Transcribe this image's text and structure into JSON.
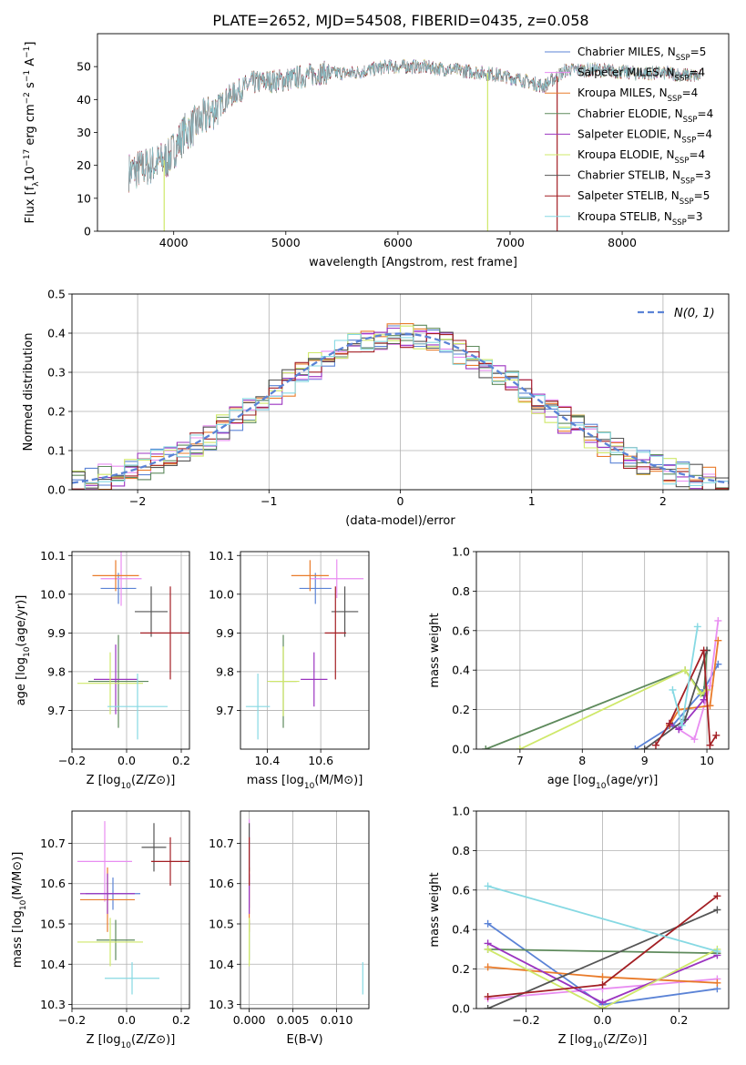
{
  "figure": {
    "title": "PLATE=2652, MJD=54508, FIBERID=0435, z=0.058"
  },
  "palette": [
    "#5b83d6",
    "#e88df1",
    "#e97b2a",
    "#5e8a5c",
    "#9b34c0",
    "#cfe86a",
    "#555555",
    "#a31f24",
    "#86d9e3"
  ],
  "legend_entries": [
    {
      "label": "Chabrier MILES, N",
      "nssp": "5",
      "color": "#5b83d6"
    },
    {
      "label": "Salpeter MILES, N",
      "nssp": "4",
      "color": "#e88df1"
    },
    {
      "label": "Kroupa MILES, N",
      "nssp": "4",
      "color": "#e97b2a"
    },
    {
      "label": "Chabrier ELODIE, N",
      "nssp": "4",
      "color": "#5e8a5c"
    },
    {
      "label": "Salpeter ELODIE, N",
      "nssp": "4",
      "color": "#9b34c0"
    },
    {
      "label": "Kroupa ELODIE, N",
      "nssp": "4",
      "color": "#cfe86a"
    },
    {
      "label": "Chabrier STELIB, N",
      "nssp": "3",
      "color": "#555555"
    },
    {
      "label": "Salpeter STELIB, N",
      "nssp": "5",
      "color": "#a31f24"
    },
    {
      "label": "Kroupa STELIB, N",
      "nssp": "3",
      "color": "#86d9e3"
    }
  ],
  "legend_sub": "SSP",
  "chart_data": [
    {
      "id": "spectrum",
      "type": "line",
      "xlabel": "wavelength [Angstrom, rest frame]",
      "ylabel": "Flux [f",
      "ylabel_tail": "10",
      "xlim": [
        3320,
        8950
      ],
      "ylim": [
        0,
        60
      ],
      "xticks": [
        "4000",
        "5000",
        "6000",
        "7000",
        "8000"
      ],
      "yticks": [
        "0",
        "10",
        "20",
        "30",
        "40",
        "50"
      ],
      "continuum_x": [
        3600,
        3800,
        3950,
        4100,
        4300,
        4500,
        4700,
        5000,
        5300,
        5600,
        5900,
        6200,
        6500,
        6800,
        7100,
        7300,
        7500,
        7800,
        8100,
        8400,
        8700
      ],
      "continuum_y": [
        18,
        20,
        22,
        30,
        35,
        41,
        45,
        46,
        48,
        48,
        50,
        50,
        49,
        48,
        46,
        44,
        49,
        49,
        48,
        48,
        47
      ]
    },
    {
      "id": "residuals",
      "type": "line",
      "xlabel": "(data-model)/error",
      "ylabel": "Normed distribution",
      "xlim": [
        -2.5,
        2.5
      ],
      "ylim": [
        0,
        0.5
      ],
      "xticks": [
        "−2",
        "−1",
        "0",
        "1",
        "2"
      ],
      "yticks": [
        "0.0",
        "0.1",
        "0.2",
        "0.3",
        "0.4",
        "0.5"
      ],
      "legend": "N(0, 1)",
      "series": [
        {
          "name": "N(0, 1)",
          "mu": 0,
          "sigma": 1
        }
      ]
    },
    {
      "id": "Z_age",
      "type": "scatter",
      "xlabel": "Z [log",
      "ylabel": "age  [log",
      "xlim": [
        -0.2,
        0.23
      ],
      "ylim": [
        9.6,
        10.11
      ],
      "xticks": [
        "−0.2",
        "0.0",
        "0.2"
      ],
      "yticks": [
        "9.7",
        "9.8",
        "9.9",
        "10.0",
        "10.1"
      ],
      "points": [
        {
          "x": -0.03,
          "y": 10.015,
          "xerr": 0.065,
          "yerr": 0.04
        },
        {
          "x": -0.02,
          "y": 10.04,
          "xerr": 0.075,
          "yerr": 0.07
        },
        {
          "x": -0.04,
          "y": 10.048,
          "xerr": 0.085,
          "yerr": 0.04
        },
        {
          "x": -0.03,
          "y": 9.775,
          "xerr": 0.11,
          "yerr": 0.12
        },
        {
          "x": -0.04,
          "y": 9.78,
          "xerr": 0.08,
          "yerr": 0.09
        },
        {
          "x": -0.06,
          "y": 9.77,
          "xerr": 0.12,
          "yerr": 0.08
        },
        {
          "x": 0.09,
          "y": 9.955,
          "xerr": 0.06,
          "yerr": 0.065
        },
        {
          "x": 0.16,
          "y": 9.9,
          "xerr": 0.11,
          "yerr": 0.12
        },
        {
          "x": 0.04,
          "y": 9.71,
          "xerr": 0.11,
          "yerr": 0.085
        }
      ]
    },
    {
      "id": "mass_age",
      "type": "scatter",
      "xlabel": "mass [log",
      "ylabel": "",
      "xlim": [
        10.3,
        10.78
      ],
      "ylim": [
        9.6,
        10.11
      ],
      "xticks": [
        "10.4",
        "10.6"
      ],
      "yticks": [
        "9.7",
        "9.8",
        "9.9",
        "10.0",
        "10.1"
      ],
      "points": [
        {
          "x": 10.58,
          "y": 10.015,
          "xerr": 0.06,
          "yerr": 0.04
        },
        {
          "x": 10.66,
          "y": 10.04,
          "xerr": 0.1,
          "yerr": 0.05
        },
        {
          "x": 10.56,
          "y": 10.048,
          "xerr": 0.07,
          "yerr": 0.04
        },
        {
          "x": 10.46,
          "y": 9.775,
          "xerr": 0.05,
          "yerr": 0.12
        },
        {
          "x": 10.575,
          "y": 9.78,
          "xerr": 0.05,
          "yerr": 0.07
        },
        {
          "x": 10.46,
          "y": 9.775,
          "xerr": 0.06,
          "yerr": 0.09
        },
        {
          "x": 10.69,
          "y": 9.955,
          "xerr": 0.05,
          "yerr": 0.065
        },
        {
          "x": 10.655,
          "y": 9.9,
          "xerr": 0.04,
          "yerr": 0.12
        },
        {
          "x": 10.365,
          "y": 9.71,
          "xerr": 0.045,
          "yerr": 0.085
        }
      ]
    },
    {
      "id": "age_weight",
      "type": "line",
      "xlabel": "age  [log",
      "ylabel": "mass weight",
      "xlim": [
        6.3,
        10.35
      ],
      "ylim": [
        0,
        1
      ],
      "xticks": [
        "7",
        "8",
        "9",
        "10"
      ],
      "yticks": [
        "0.0",
        "0.2",
        "0.4",
        "0.6",
        "0.8",
        "1.0"
      ],
      "series": [
        {
          "x": [
            8.85,
            9.45,
            9.95,
            10.18
          ],
          "y": [
            0.0,
            0.12,
            0.3,
            0.43
          ]
        },
        {
          "x": [
            9.55,
            9.8,
            10.05,
            10.18
          ],
          "y": [
            0.1,
            0.05,
            0.32,
            0.65
          ]
        },
        {
          "x": [
            9.4,
            9.55,
            10.05,
            10.18
          ],
          "y": [
            0.12,
            0.2,
            0.22,
            0.55
          ]
        },
        {
          "x": [
            6.45,
            9.65,
            9.95,
            10.0
          ],
          "y": [
            0.0,
            0.4,
            0.27,
            0.5
          ]
        },
        {
          "x": [
            9.4,
            9.55,
            9.95,
            10.0
          ],
          "y": [
            0.13,
            0.1,
            0.25,
            0.3
          ]
        },
        {
          "x": [
            7.0,
            9.65,
            9.9,
            10.0
          ],
          "y": [
            0.0,
            0.4,
            0.28,
            0.3
          ]
        },
        {
          "x": [
            9.0,
            9.65,
            10.0
          ],
          "y": [
            0.0,
            0.15,
            0.5
          ]
        },
        {
          "x": [
            9.18,
            9.4,
            9.95,
            10.05,
            10.15
          ],
          "y": [
            0.02,
            0.13,
            0.5,
            0.02,
            0.07
          ]
        },
        {
          "x": [
            9.45,
            9.6,
            9.85
          ],
          "y": [
            0.3,
            0.12,
            0.62
          ]
        }
      ]
    },
    {
      "id": "Z_mass",
      "type": "scatter",
      "xlabel": "Z [log",
      "ylabel": "mass [log",
      "xlim": [
        -0.2,
        0.23
      ],
      "ylim": [
        10.29,
        10.78
      ],
      "xticks": [
        "−0.2",
        "0.0",
        "0.2"
      ],
      "yticks": [
        "10.3",
        "10.4",
        "10.5",
        "10.6",
        "10.7"
      ],
      "points": [
        {
          "x": -0.05,
          "y": 10.575,
          "xerr": 0.1,
          "yerr": 0.04
        },
        {
          "x": -0.08,
          "y": 10.655,
          "xerr": 0.1,
          "yerr": 0.1
        },
        {
          "x": -0.07,
          "y": 10.56,
          "xerr": 0.1,
          "yerr": 0.08
        },
        {
          "x": -0.04,
          "y": 10.46,
          "xerr": 0.07,
          "yerr": 0.05
        },
        {
          "x": -0.07,
          "y": 10.575,
          "xerr": 0.1,
          "yerr": 0.05
        },
        {
          "x": -0.06,
          "y": 10.455,
          "xerr": 0.12,
          "yerr": 0.06
        },
        {
          "x": 0.1,
          "y": 10.69,
          "xerr": 0.045,
          "yerr": 0.06
        },
        {
          "x": 0.16,
          "y": 10.655,
          "xerr": 0.07,
          "yerr": 0.06
        },
        {
          "x": 0.02,
          "y": 10.365,
          "xerr": 0.1,
          "yerr": 0.04
        }
      ]
    },
    {
      "id": "EBV_mass",
      "type": "scatter",
      "xlabel": "E(B-V)",
      "ylabel": "",
      "xlim": [
        -0.001,
        0.0137
      ],
      "ylim": [
        10.29,
        10.78
      ],
      "xticks": [
        "0.000",
        "0.005",
        "0.010"
      ],
      "yticks": [
        "10.3",
        "10.4",
        "10.5",
        "10.6",
        "10.7"
      ],
      "points": [
        {
          "x": 0.0,
          "y": 10.58,
          "xerr": 0,
          "yerr": 0.04
        },
        {
          "x": 0.0,
          "y": 10.66,
          "xerr": 0,
          "yerr": 0.1
        },
        {
          "x": 0.0,
          "y": 10.56,
          "xerr": 0,
          "yerr": 0.08
        },
        {
          "x": 0.0,
          "y": 10.46,
          "xerr": 0,
          "yerr": 0.05
        },
        {
          "x": 0.0,
          "y": 10.575,
          "xerr": 0,
          "yerr": 0.05
        },
        {
          "x": 0.0,
          "y": 10.455,
          "xerr": 0,
          "yerr": 0.06
        },
        {
          "x": 0.0,
          "y": 10.69,
          "xerr": 0,
          "yerr": 0.06
        },
        {
          "x": 0.0,
          "y": 10.655,
          "xerr": 0,
          "yerr": 0.06
        },
        {
          "x": 0.013,
          "y": 10.365,
          "xerr": 0,
          "yerr": 0.04
        }
      ]
    },
    {
      "id": "Z_weight",
      "type": "line",
      "xlabel": "Z [log",
      "ylabel": "mass weight",
      "xlim": [
        -0.33,
        0.33
      ],
      "ylim": [
        0,
        1
      ],
      "xticks": [
        "−0.2",
        "0.0",
        "0.2"
      ],
      "yticks": [
        "0.0",
        "0.2",
        "0.4",
        "0.6",
        "0.8",
        "1.0"
      ],
      "series": [
        {
          "x": [
            -0.3,
            0.0,
            0.3
          ],
          "y": [
            0.43,
            0.02,
            0.1
          ]
        },
        {
          "x": [
            -0.3,
            0.0,
            0.3
          ],
          "y": [
            0.05,
            0.1,
            0.15
          ]
        },
        {
          "x": [
            -0.3,
            0.0,
            0.3
          ],
          "y": [
            0.21,
            0.16,
            0.13
          ]
        },
        {
          "x": [
            -0.3,
            0.3
          ],
          "y": [
            0.3,
            0.28
          ]
        },
        {
          "x": [
            -0.3,
            0.0,
            0.3
          ],
          "y": [
            0.33,
            0.03,
            0.27
          ]
        },
        {
          "x": [
            -0.3,
            0.0,
            0.3
          ],
          "y": [
            0.3,
            0.0,
            0.3
          ]
        },
        {
          "x": [
            -0.3,
            0.3
          ],
          "y": [
            0.0,
            0.5
          ]
        },
        {
          "x": [
            -0.3,
            0.0,
            0.3
          ],
          "y": [
            0.06,
            0.12,
            0.57
          ]
        },
        {
          "x": [
            -0.3,
            0.3
          ],
          "y": [
            0.62,
            0.29
          ]
        }
      ]
    }
  ]
}
